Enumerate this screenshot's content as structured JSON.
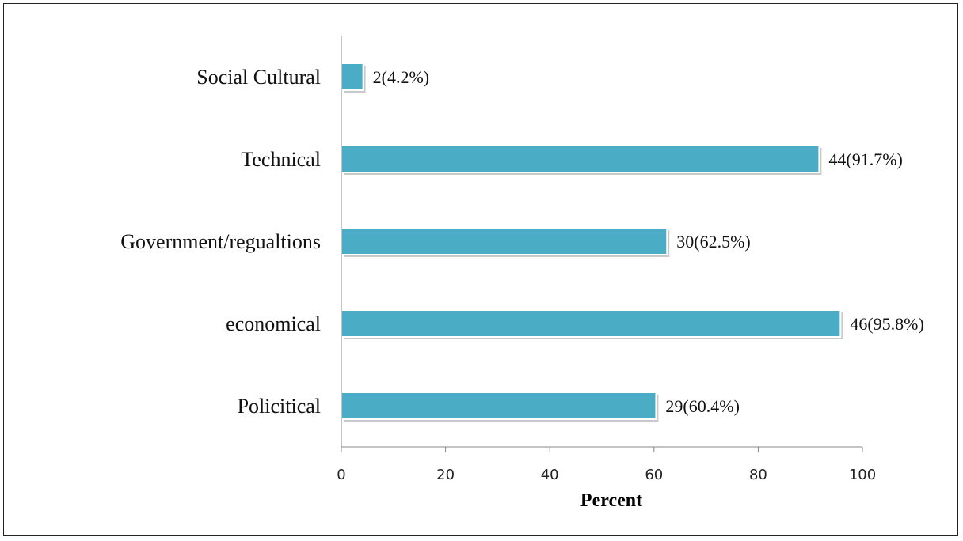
{
  "chart_data": {
    "type": "bar",
    "orientation": "horizontal",
    "categories": [
      "Policitical",
      "economical",
      "Government/regualtions",
      "Technical",
      "Social Cultural"
    ],
    "values": [
      60.4,
      95.8,
      62.5,
      91.7,
      4.2
    ],
    "data_labels": [
      "29(60.4%)",
      "46(95.8%)",
      "30(62.5%)",
      "44(91.7%)",
      "2(4.2%)"
    ],
    "xlabel": "Percent",
    "ylabel": "",
    "xlim": [
      0,
      100
    ],
    "xticks": [
      "0",
      "20",
      "40",
      "60",
      "80",
      "100"
    ],
    "grid": false,
    "legend": "none",
    "bar_color": "#4BACC6"
  }
}
